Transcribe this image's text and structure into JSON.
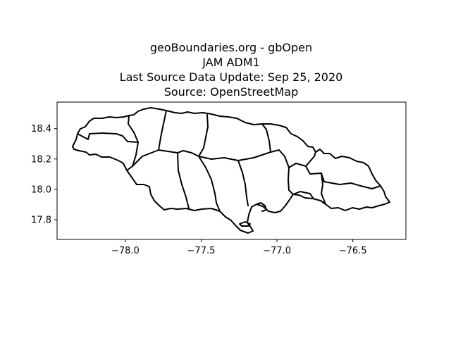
{
  "map": {
    "title_lines": [
      "geoBoundaries.org - gbOpen",
      "JAM ADM1",
      "Last Source Data Update: Sep 25, 2020",
      "Source: OpenStreetMap"
    ],
    "x_ticks": [
      {
        "value": -78.0,
        "label": "−78.0"
      },
      {
        "value": -77.5,
        "label": "−77.5"
      },
      {
        "value": -77.0,
        "label": "−77.0"
      },
      {
        "value": -76.5,
        "label": "−76.5"
      }
    ],
    "y_ticks": [
      {
        "value": 18.4,
        "label": "18.4"
      },
      {
        "value": 18.2,
        "label": "18.2"
      },
      {
        "value": 18.0,
        "label": "18.0"
      },
      {
        "value": 17.8,
        "label": "17.8"
      }
    ],
    "x_range": [
      -78.45,
      -76.15
    ],
    "y_range": [
      17.67,
      18.575
    ],
    "colors": {
      "boundary": "#000000",
      "background": "#ffffff",
      "frame": "#000000"
    }
  }
}
